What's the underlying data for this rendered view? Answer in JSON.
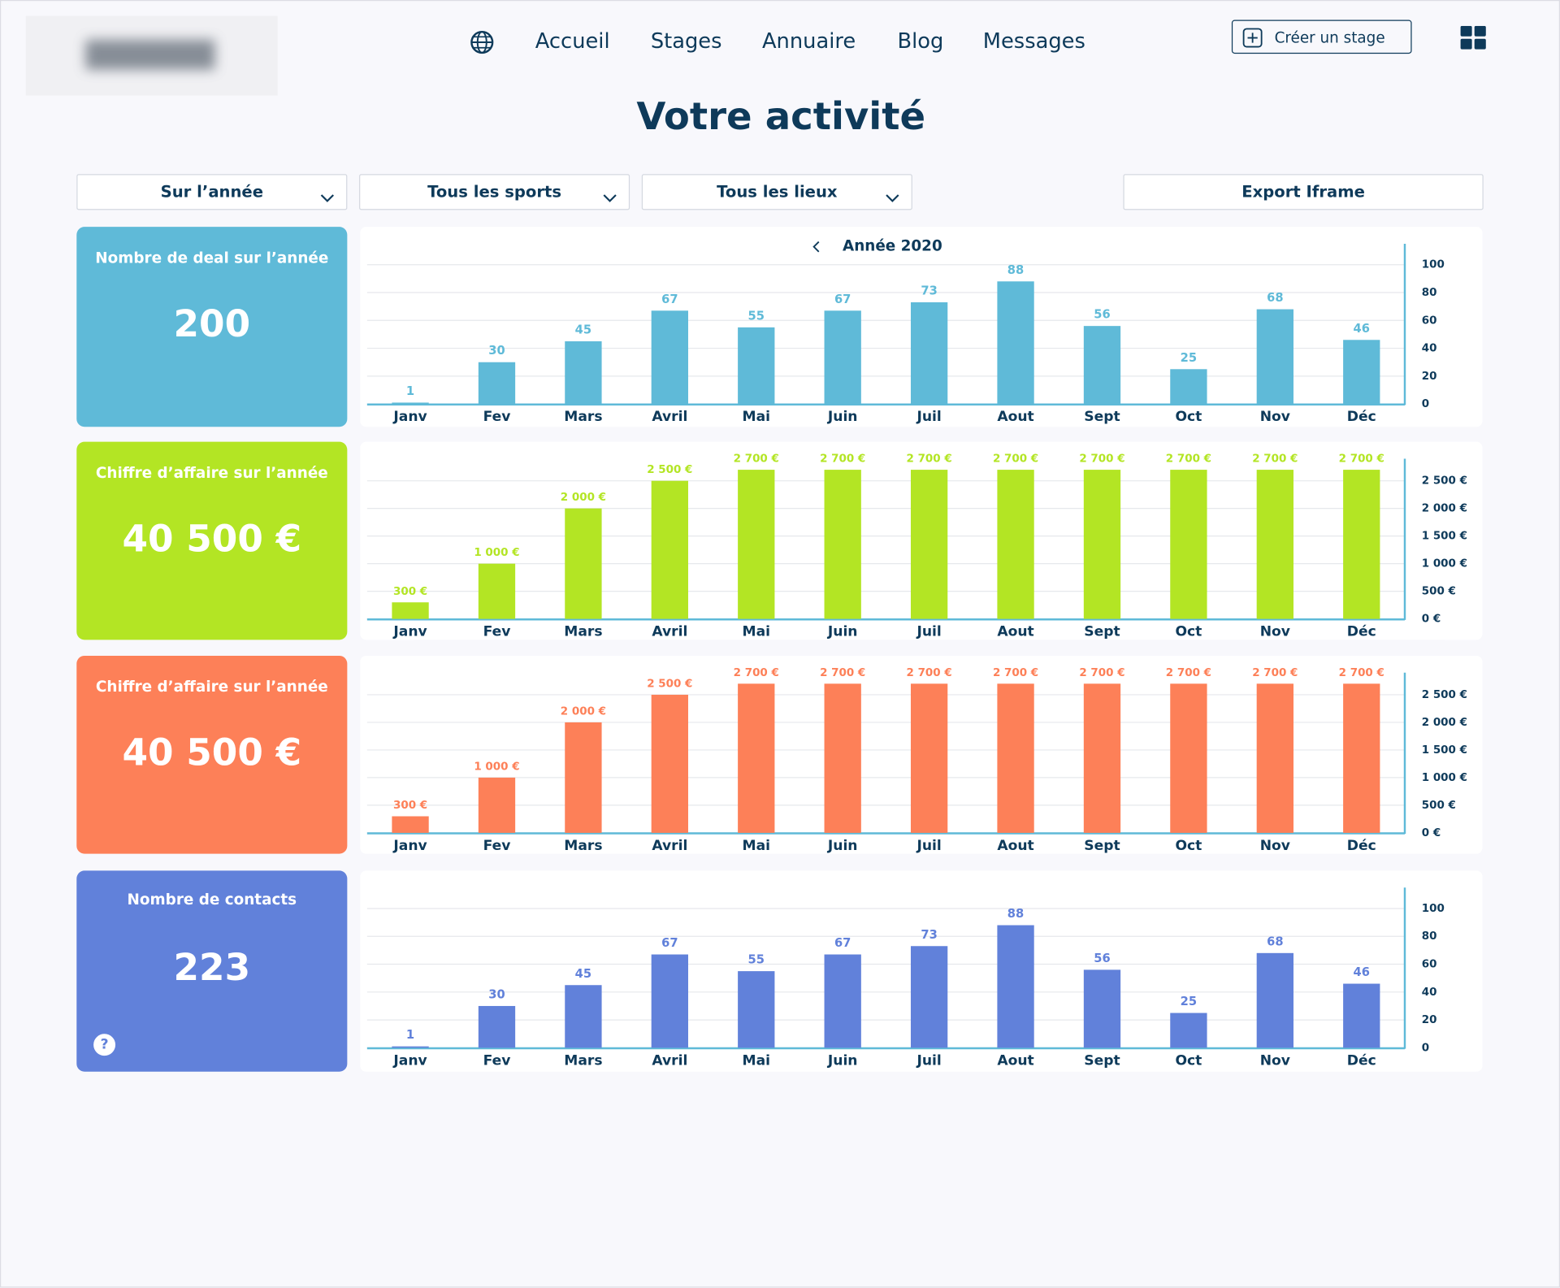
{
  "nav": {
    "links": [
      "Accueil",
      "Stages",
      "Annuaire",
      "Blog",
      "Messages"
    ],
    "create_button": "Créer un stage"
  },
  "header": {
    "title": "Votre activité"
  },
  "filters": [
    "Sur l’année",
    "Tous les sports",
    "Tous les lieux"
  ],
  "export_button": "Export Iframe",
  "cards": [
    {
      "label": "Nombre de deal sur l’année",
      "value": 200
    },
    {
      "label": "Chiffre d’affaire sur l’année",
      "value": "40 500 €"
    },
    {
      "label": "Chiffre d’affaire sur l’année",
      "value": "40 500 €"
    },
    {
      "label": "Nombre de contacts",
      "value": 223,
      "help": "?"
    }
  ],
  "chart_data": [
    {
      "type": "bar",
      "title": "Année 2020",
      "color": "#5fbad8",
      "categories": [
        "Janv",
        "Fev",
        "Mars",
        "Avril",
        "Mai",
        "Juin",
        "Juil",
        "Aout",
        "Sept",
        "Oct",
        "Nov",
        "Déc"
      ],
      "values": [
        1,
        30,
        45,
        67,
        55,
        67,
        73,
        88,
        56,
        25,
        68,
        46
      ],
      "ylim": [
        0,
        115
      ],
      "yticks": [
        0,
        20,
        40,
        60,
        80,
        100
      ],
      "grid": true
    },
    {
      "type": "bar",
      "color": "#b3e524",
      "categories": [
        "Janv",
        "Fev",
        "Mars",
        "Avril",
        "Mai",
        "Juin",
        "Juil",
        "Aout",
        "Sept",
        "Oct",
        "Nov",
        "Déc"
      ],
      "values": [
        300,
        1000,
        2000,
        2500,
        2700,
        2700,
        2700,
        2700,
        2700,
        2700,
        2700,
        2700
      ],
      "value_labels": [
        "300 €",
        "1 000 €",
        "2 000 €",
        "2 500 €",
        "2 700 €",
        "2 700 €",
        "2 700 €",
        "2 700 €",
        "2 700 €",
        "2 700 €",
        "2 700 €",
        "2 700 €"
      ],
      "ylim": [
        0,
        2900
      ],
      "yticks": [
        {
          "value": 0,
          "label": "0 €"
        },
        {
          "value": 500,
          "label": "500 €"
        },
        {
          "value": 1000,
          "label": "1 000 €"
        },
        {
          "value": 1500,
          "label": "1 500 €"
        },
        {
          "value": 2000,
          "label": "2 000 €"
        },
        {
          "value": 2500,
          "label": "2 500 €"
        }
      ],
      "grid": true
    },
    {
      "type": "bar",
      "color": "#fd8058",
      "categories": [
        "Janv",
        "Fev",
        "Mars",
        "Avril",
        "Mai",
        "Juin",
        "Juil",
        "Aout",
        "Sept",
        "Oct",
        "Nov",
        "Déc"
      ],
      "values": [
        300,
        1000,
        2000,
        2500,
        2700,
        2700,
        2700,
        2700,
        2700,
        2700,
        2700,
        2700
      ],
      "value_labels": [
        "300 €",
        "1 000 €",
        "2 000 €",
        "2 500 €",
        "2 700 €",
        "2 700 €",
        "2 700 €",
        "2 700 €",
        "2 700 €",
        "2 700 €",
        "2 700 €",
        "2 700 €"
      ],
      "ylim": [
        0,
        2900
      ],
      "yticks": [
        {
          "value": 0,
          "label": "0 €"
        },
        {
          "value": 500,
          "label": "500 €"
        },
        {
          "value": 1000,
          "label": "1 000 €"
        },
        {
          "value": 1500,
          "label": "1 500 €"
        },
        {
          "value": 2000,
          "label": "2 000 €"
        },
        {
          "value": 2500,
          "label": "2 500 €"
        }
      ],
      "grid": true
    },
    {
      "type": "bar",
      "color": "#6181da",
      "categories": [
        "Janv",
        "Fev",
        "Mars",
        "Avril",
        "Mai",
        "Juin",
        "Juil",
        "Aout",
        "Sept",
        "Oct",
        "Nov",
        "Déc"
      ],
      "values": [
        1,
        30,
        45,
        67,
        55,
        67,
        73,
        88,
        56,
        25,
        68,
        46
      ],
      "ylim": [
        0,
        115
      ],
      "yticks": [
        0,
        20,
        40,
        60,
        80,
        100
      ],
      "grid": true
    }
  ]
}
